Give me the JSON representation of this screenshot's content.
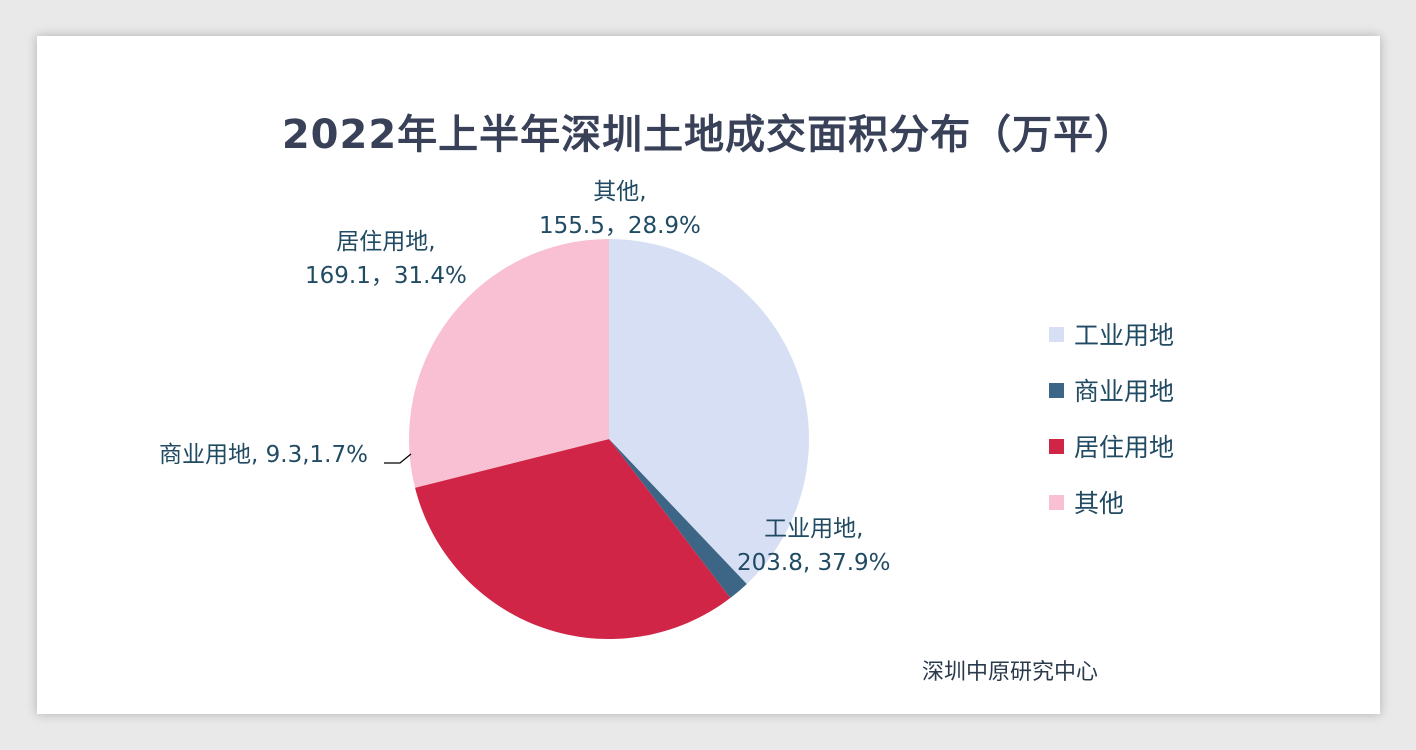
{
  "chart_data": {
    "type": "pie",
    "title": "2022年上半年深圳土地成交面积分布（万平）",
    "slices": [
      {
        "name": "工业用地",
        "value": 203.8,
        "percent": "37.9%",
        "color": "#d7dff4",
        "label_name": "工业用地,",
        "label_value": "203.8, 37.9%"
      },
      {
        "name": "商业用地",
        "value": 9.3,
        "percent": "1.7%",
        "color": "#3d6585",
        "label_full": "商业用地, 9.3,1.7%"
      },
      {
        "name": "居住用地",
        "value": 169.1,
        "percent": "31.4%",
        "color": "#d12547",
        "label_name": "居住用地,",
        "label_value": "169.1，31.4%"
      },
      {
        "name": "其他",
        "value": 155.5,
        "percent": "28.9%",
        "color": "#f8c0d2",
        "label_name": "其他,",
        "label_value": "155.5，28.9%"
      }
    ],
    "legend": [
      "工业用地",
      "商业用地",
      "居住用地",
      "其他"
    ],
    "legend_position": "right"
  },
  "source": "深圳中原研究中心"
}
